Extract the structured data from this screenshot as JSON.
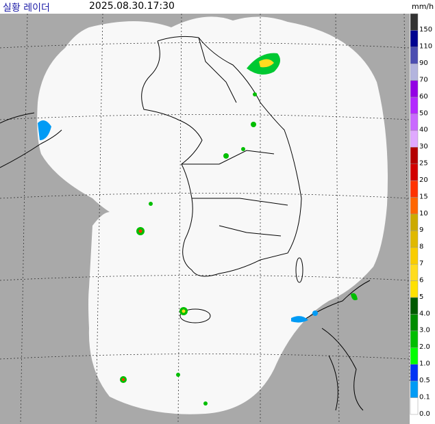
{
  "header": {
    "title": "실황 레이더",
    "timestamp": "2025.08.30.17:30",
    "unit": "mm/h"
  },
  "legend": {
    "items": [
      {
        "label": "150",
        "color": "#333333"
      },
      {
        "label": "110",
        "color": "#000390"
      },
      {
        "label": "90",
        "color": "#4c4eb1"
      },
      {
        "label": "70",
        "color": "#b3b4de"
      },
      {
        "label": "60",
        "color": "#9300e4"
      },
      {
        "label": "50",
        "color": "#b329ff"
      },
      {
        "label": "40",
        "color": "#c969ff"
      },
      {
        "label": "30",
        "color": "#e0a9ff"
      },
      {
        "label": "25",
        "color": "#b40000"
      },
      {
        "label": "20",
        "color": "#d20000"
      },
      {
        "label": "15",
        "color": "#ff3200"
      },
      {
        "label": "10",
        "color": "#ff6600"
      },
      {
        "label": "9",
        "color": "#ccaa00"
      },
      {
        "label": "8",
        "color": "#e0b900"
      },
      {
        "label": "7",
        "color": "#f9cd00"
      },
      {
        "label": "6",
        "color": "#ffdc1f"
      },
      {
        "label": "5",
        "color": "#ffe100"
      },
      {
        "label": "4.0",
        "color": "#005a00"
      },
      {
        "label": "3.0",
        "color": "#008c00"
      },
      {
        "label": "2.0",
        "color": "#00be00"
      },
      {
        "label": "1.0",
        "color": "#00ff00"
      },
      {
        "label": "0.5",
        "color": "#0033f5"
      },
      {
        "label": "0.1",
        "color": "#009bf5"
      },
      {
        "label": "0.0",
        "color": "#ffffff"
      }
    ]
  }
}
